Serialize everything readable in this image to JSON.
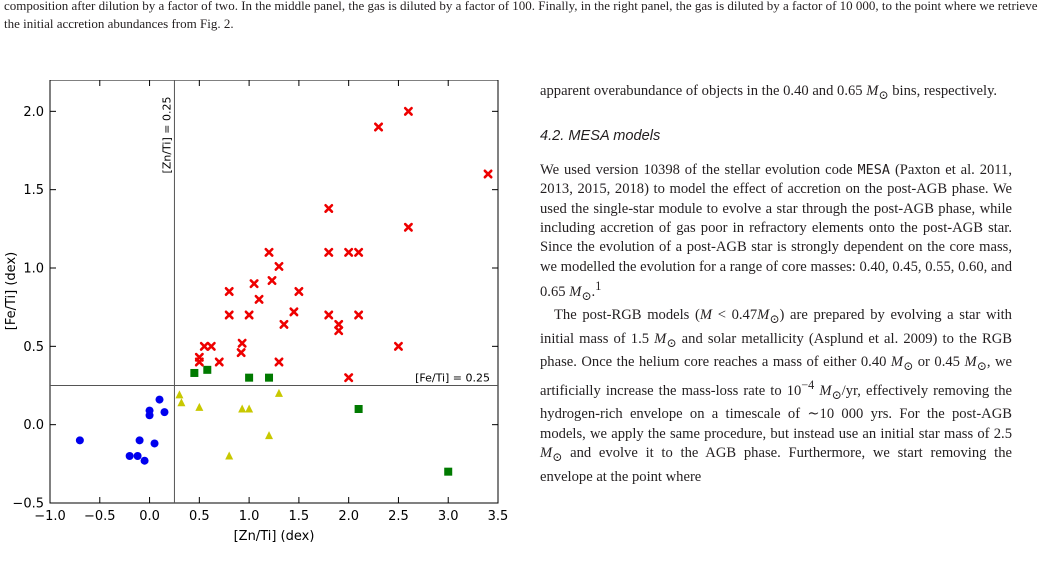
{
  "caption": "composition after dilution by a factor of two. In the middle panel, the gas is diluted by a factor of 100. Finally, in the right panel, the gas is diluted by a factor of 10 000, to the point where we retrieve the initial accretion abundances from Fig. 2.",
  "chart_data": {
    "type": "scatter",
    "xlabel": "[Zn/Ti] (dex)",
    "ylabel": "[Fe/Ti] (dex)",
    "xlim": [
      -1.0,
      3.5
    ],
    "ylim": [
      -0.5,
      2.2
    ],
    "x_ticks": [
      -1.0,
      -0.5,
      0.0,
      0.5,
      1.0,
      1.5,
      2.0,
      2.5,
      3.0,
      3.5
    ],
    "x_tick_labels": [
      "−1.0",
      "−0.5",
      "0.0",
      "0.5",
      "1.0",
      "1.5",
      "2.0",
      "2.5",
      "3.0",
      "3.5"
    ],
    "y_ticks": [
      -0.5,
      0.0,
      0.5,
      1.0,
      1.5,
      2.0
    ],
    "y_tick_labels": [
      "−0.5",
      "0.0",
      "0.5",
      "1.0",
      "1.5",
      "2.0"
    ],
    "grid": false,
    "reference_lines": {
      "vertical": {
        "x": 0.25,
        "label": "[Zn/Ti] = 0.25"
      },
      "horizontal": {
        "y": 0.25,
        "label": "[Fe/Ti] = 0.25"
      }
    },
    "series": [
      {
        "marker": "circle",
        "color": "#0000ee",
        "points": [
          [
            -0.7,
            -0.1
          ],
          [
            -0.2,
            -0.2
          ],
          [
            -0.12,
            -0.2
          ],
          [
            -0.1,
            -0.1
          ],
          [
            -0.05,
            -0.23
          ],
          [
            0.0,
            0.06
          ],
          [
            0.0,
            0.09
          ],
          [
            0.05,
            -0.12
          ],
          [
            0.1,
            0.16
          ],
          [
            0.15,
            0.08
          ]
        ]
      },
      {
        "marker": "triangle",
        "color": "#c8c800",
        "points": [
          [
            0.3,
            0.19
          ],
          [
            0.32,
            0.14
          ],
          [
            0.5,
            0.11
          ],
          [
            0.8,
            -0.2
          ],
          [
            0.93,
            0.1
          ],
          [
            1.0,
            0.1
          ],
          [
            1.2,
            -0.07
          ],
          [
            1.3,
            0.2
          ]
        ]
      },
      {
        "marker": "square",
        "color": "#007a00",
        "points": [
          [
            0.45,
            0.33
          ],
          [
            0.58,
            0.35
          ],
          [
            1.0,
            0.3
          ],
          [
            1.2,
            0.3
          ],
          [
            2.1,
            0.1
          ],
          [
            3.0,
            -0.3
          ]
        ]
      },
      {
        "marker": "x",
        "color": "#ee0000",
        "points": [
          [
            0.5,
            0.43
          ],
          [
            0.5,
            0.4
          ],
          [
            0.55,
            0.5
          ],
          [
            0.62,
            0.5
          ],
          [
            0.7,
            0.4
          ],
          [
            0.8,
            0.85
          ],
          [
            0.8,
            0.7
          ],
          [
            0.92,
            0.46
          ],
          [
            0.93,
            0.52
          ],
          [
            1.0,
            0.7
          ],
          [
            1.05,
            0.9
          ],
          [
            1.1,
            0.8
          ],
          [
            1.2,
            1.1
          ],
          [
            1.23,
            0.92
          ],
          [
            1.3,
            1.01
          ],
          [
            1.3,
            0.4
          ],
          [
            1.35,
            0.64
          ],
          [
            1.45,
            0.72
          ],
          [
            1.5,
            0.85
          ],
          [
            1.8,
            1.38
          ],
          [
            1.8,
            1.1
          ],
          [
            1.8,
            0.7
          ],
          [
            1.9,
            0.64
          ],
          [
            1.9,
            0.6
          ],
          [
            2.0,
            1.1
          ],
          [
            2.0,
            0.3
          ],
          [
            2.1,
            1.1
          ],
          [
            2.1,
            0.7
          ],
          [
            2.3,
            1.9
          ],
          [
            2.5,
            0.5
          ],
          [
            2.6,
            2.0
          ],
          [
            2.6,
            1.26
          ],
          [
            3.4,
            1.6
          ]
        ]
      }
    ]
  },
  "right_column": {
    "intro": {
      "t1": "apparent overabundance of objects in the 0.40 and 0.65 ",
      "msun1": "M",
      "sun1": "⊙",
      "t2": " bins, respectively."
    },
    "section_heading": "4.2. MESA models",
    "p1": {
      "t1": "We used version 10398 of the stellar evolution code ",
      "mesa": "MESA",
      "t2": " (Paxton et al. 2011, 2013, 2015, 2018) to model the effect of accretion on the post-AGB phase. We used the single-star module to evolve a star through the post-AGB phase, while including accretion of gas poor in refractory elements onto the post-AGB star. Since the evolution of a post-AGB star is strongly dependent on the core mass, we modelled the evolution for a range of core masses: 0.40, 0.45, 0.55, 0.60, and 0.65 ",
      "msun": "M",
      "sun": "⊙",
      "t3": ".",
      "footnote": "1"
    },
    "p2": {
      "t1": "The post-RGB models (",
      "m1": "M",
      "t2": " < 0.47",
      "m2": "M",
      "sun2": "⊙",
      "t3": ") are prepared by evolving a star with initial mass of 1.5 ",
      "m3": "M",
      "sun3": "⊙",
      "t4": " and solar metallicity (Asplund et al. 2009) to the RGB phase. Once the helium core reaches a mass of either 0.40 ",
      "m4": "M",
      "sun4": "⊙",
      "t5": " or 0.45 ",
      "m5": "M",
      "sun5": "⊙",
      "t6": ", we artificially increase the mass-loss rate to 10",
      "exp": "−4",
      "t7": " ",
      "m6": "M",
      "sun6": "⊙",
      "t8": "/yr, effectively removing the hydrogen-rich envelope on a timescale of ∼10 000 yrs. For the post-AGB models, we apply the same procedure, but instead use an initial star mass of 2.5 ",
      "m7": "M",
      "sun7": "⊙",
      "t9": " and evolve it to the AGB phase. Furthermore, we start removing the envelope at the point where"
    }
  }
}
